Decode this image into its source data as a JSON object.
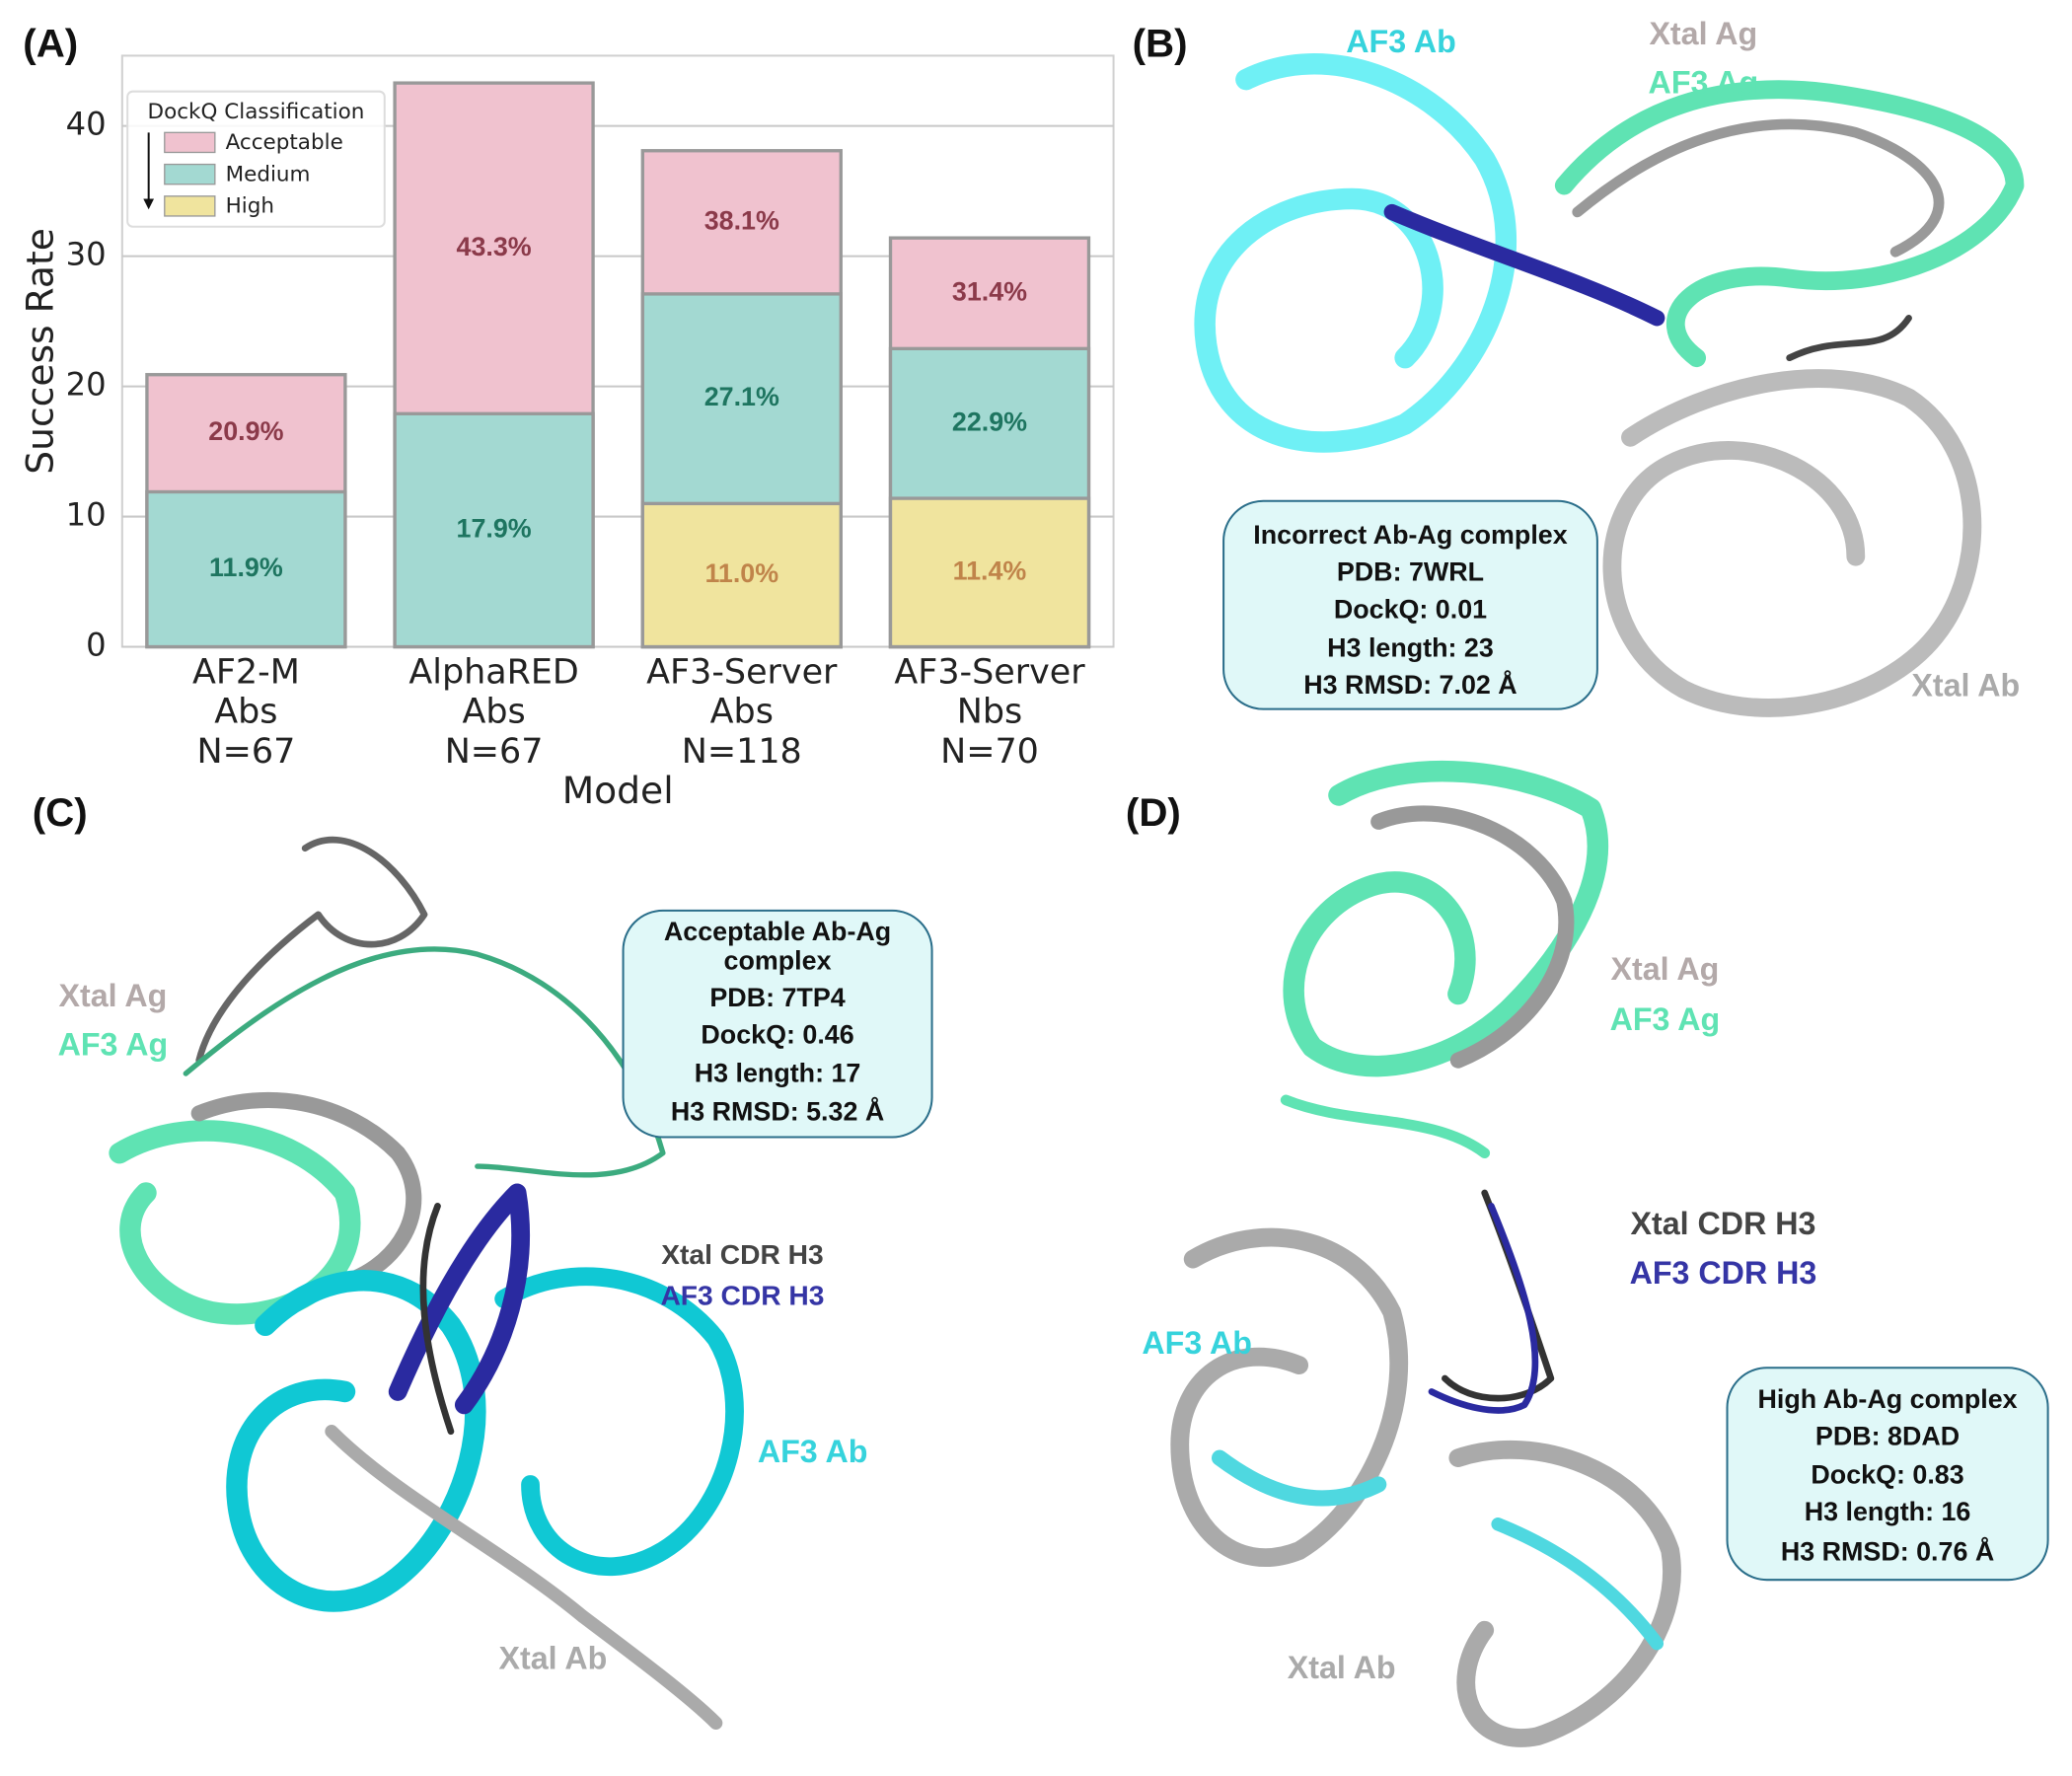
{
  "chart_data": {
    "type": "bar",
    "panel_label": "(A)",
    "ylabel": "Success Rate",
    "xlabel": "Model",
    "categories": [
      [
        "AF2-M",
        "Abs",
        "N=67"
      ],
      [
        "AlphaRED",
        "Abs",
        "N=67"
      ],
      [
        "AF3-Server",
        "Abs",
        "N=118"
      ],
      [
        "AF3-Server",
        "Nbs",
        "N=70"
      ]
    ],
    "series": [
      {
        "name": "Acceptable",
        "color": "#f0c2cf",
        "label_color": "#8b3a4a",
        "values": [
          20.9,
          43.3,
          38.1,
          31.4
        ],
        "value_labels": [
          "20.9%",
          "43.3%",
          "38.1%",
          "31.4%"
        ]
      },
      {
        "name": "Medium",
        "color": "#a3d9d2",
        "label_color": "#1e7560",
        "values": [
          11.9,
          17.9,
          27.1,
          22.9
        ],
        "value_labels": [
          "11.9%",
          "17.9%",
          "27.1%",
          "22.9%"
        ]
      },
      {
        "name": "High",
        "color": "#f0e49e",
        "label_color": "#c0844a",
        "values": [
          null,
          null,
          11.0,
          11.4
        ],
        "value_labels": [
          null,
          null,
          "11.0%",
          "11.4%"
        ]
      }
    ],
    "legend_title": "DockQ Classification",
    "legend": "upper left",
    "ylim": [
      0,
      45.4
    ],
    "yticks": [
      0,
      10,
      20,
      30,
      40
    ],
    "grid": true
  },
  "structures": [
    {
      "panel_label": "(B)",
      "labels": [
        {
          "text": "AF3 Ab",
          "color": "#36d3dc"
        },
        {
          "text": "Xtal Ag",
          "color": "#b3a9a9"
        },
        {
          "text": "AF3 Ag",
          "color": "#5fe3b3"
        },
        {
          "text": "Xtal Ab",
          "color": "#aaaaaa"
        }
      ],
      "info": [
        "Incorrect Ab-Ag complex",
        "PDB: 7WRL",
        "DockQ: 0.01",
        "H3 length: 23",
        "H3 RMSD: 7.02 Å"
      ]
    },
    {
      "panel_label": "(C)",
      "labels": [
        {
          "text": "Xtal Ag",
          "color": "#b3a9a9"
        },
        {
          "text": "AF3 Ag",
          "color": "#5fe3b3"
        },
        {
          "text": "Xtal CDR H3",
          "color": "#444444"
        },
        {
          "text": "AF3 CDR H3",
          "color": "#3535a5"
        },
        {
          "text": "AF3 Ab",
          "color": "#36d3dc"
        },
        {
          "text": "Xtal Ab",
          "color": "#aaaaaa"
        }
      ],
      "info": [
        "Acceptable Ab-Ag",
        "complex",
        "PDB: 7TP4",
        "DockQ: 0.46",
        "H3 length: 17",
        "H3 RMSD: 5.32 Å"
      ]
    },
    {
      "panel_label": "(D)",
      "labels": [
        {
          "text": "Xtal Ag",
          "color": "#b3a9a9"
        },
        {
          "text": "AF3 Ag",
          "color": "#5fe3b3"
        },
        {
          "text": "Xtal CDR H3",
          "color": "#444444"
        },
        {
          "text": "AF3 CDR H3",
          "color": "#3535a5"
        },
        {
          "text": "AF3 Ab",
          "color": "#36d3dc"
        },
        {
          "text": "Xtal Ab",
          "color": "#aaaaaa"
        }
      ],
      "info": [
        "High Ab-Ag complex",
        "PDB: 8DAD",
        "DockQ: 0.83",
        "H3 length: 16",
        "H3 RMSD: 0.76 Å"
      ]
    }
  ]
}
